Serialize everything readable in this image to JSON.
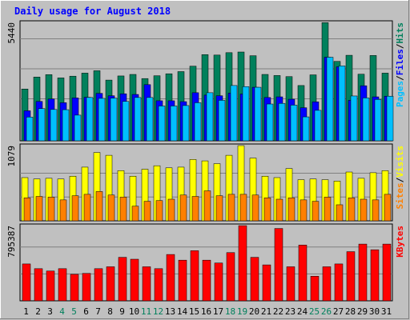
{
  "chart_data": [
    {
      "type": "bar",
      "title": "Daily usage for August 2018",
      "ylabel": "Pages / Files / Hits",
      "ymax_label": "5440",
      "ylim": [
        0,
        5440
      ],
      "categories": [
        "1",
        "2",
        "3",
        "4",
        "5",
        "6",
        "7",
        "8",
        "9",
        "10",
        "11",
        "12",
        "13",
        "14",
        "15",
        "16",
        "17",
        "18",
        "19",
        "20",
        "21",
        "22",
        "23",
        "24",
        "25",
        "26",
        "27",
        "28",
        "29",
        "30",
        "31"
      ],
      "series": [
        {
          "name": "Hits",
          "color": "#00805c",
          "values": [
            2380,
            2930,
            3040,
            2890,
            2970,
            3110,
            3220,
            2790,
            2980,
            3050,
            2860,
            2990,
            3080,
            3180,
            3430,
            3960,
            3940,
            4050,
            4080,
            3910,
            3050,
            3000,
            2950,
            2540,
            3030,
            5430,
            3650,
            3930,
            3060,
            3920,
            3110
          ]
        },
        {
          "name": "Files",
          "color": "#0000ff",
          "values": [
            1380,
            1810,
            1920,
            1750,
            1970,
            2000,
            2180,
            2070,
            2160,
            2130,
            2580,
            1840,
            1840,
            1800,
            2210,
            2100,
            2070,
            2190,
            2150,
            2460,
            1990,
            2020,
            1910,
            1520,
            1790,
            3840,
            3400,
            1860,
            2530,
            2020,
            2050
          ]
        },
        {
          "name": "Pages",
          "color": "#00bfff",
          "values": [
            1090,
            1480,
            1440,
            1430,
            1180,
            1990,
            1950,
            1960,
            1810,
            1990,
            1990,
            1600,
            1600,
            1620,
            1750,
            2210,
            1860,
            2540,
            2490,
            2460,
            1690,
            1720,
            1640,
            1100,
            1400,
            3840,
            3440,
            2060,
            1970,
            1900,
            2050
          ]
        }
      ]
    },
    {
      "type": "bar",
      "ylabel": "Sites / Visits",
      "ymax_label": "1079",
      "ylim": [
        0,
        1079
      ],
      "categories": [
        "1",
        "2",
        "3",
        "4",
        "5",
        "6",
        "7",
        "8",
        "9",
        "10",
        "11",
        "12",
        "13",
        "14",
        "15",
        "16",
        "17",
        "18",
        "19",
        "20",
        "21",
        "22",
        "23",
        "24",
        "25",
        "26",
        "27",
        "28",
        "29",
        "30",
        "31"
      ],
      "series": [
        {
          "name": "Visits",
          "color": "#ffff00",
          "values": [
            620,
            600,
            610,
            600,
            640,
            770,
            980,
            940,
            720,
            640,
            740,
            790,
            760,
            770,
            880,
            860,
            820,
            940,
            1079,
            900,
            640,
            620,
            750,
            590,
            600,
            590,
            570,
            700,
            610,
            690,
            720
          ]
        },
        {
          "name": "Sites",
          "color": "#ff8000",
          "values": [
            330,
            350,
            340,
            300,
            360,
            380,
            420,
            370,
            340,
            210,
            280,
            290,
            310,
            370,
            350,
            430,
            360,
            380,
            380,
            370,
            330,
            310,
            330,
            300,
            280,
            340,
            230,
            330,
            310,
            300,
            380
          ]
        }
      ]
    },
    {
      "type": "bar",
      "ylabel": "KBytes",
      "ymax_label": "795387",
      "ylim": [
        0,
        795387
      ],
      "categories": [
        "1",
        "2",
        "3",
        "4",
        "5",
        "6",
        "7",
        "8",
        "9",
        "10",
        "11",
        "12",
        "13",
        "14",
        "15",
        "16",
        "17",
        "18",
        "19",
        "20",
        "21",
        "22",
        "23",
        "24",
        "25",
        "26",
        "27",
        "28",
        "29",
        "30",
        "31"
      ],
      "series": [
        {
          "name": "KBytes",
          "color": "#ff0000",
          "values": [
            390000,
            340000,
            315000,
            340000,
            280000,
            290000,
            340000,
            360000,
            460000,
            440000,
            360000,
            340000,
            490000,
            430000,
            530000,
            430000,
            400000,
            510000,
            795000,
            460000,
            380000,
            765000,
            360000,
            590000,
            260000,
            360000,
            390000,
            520000,
            600000,
            540000,
            600000
          ]
        }
      ]
    }
  ],
  "weekend_days": [
    "4",
    "5",
    "11",
    "12",
    "18",
    "19",
    "25",
    "26"
  ],
  "colors": {
    "background": "#c0c0c0",
    "title": "#0000ff",
    "weekday_label": "#000000",
    "weekend_label": "#00805c",
    "label_pages": "#00bfff",
    "label_files": "#0000ff",
    "label_hits": "#00805c",
    "label_sites": "#ff8000",
    "label_visits": "#ffff00",
    "label_kbytes": "#ff0000",
    "label_slash": "#000000"
  }
}
